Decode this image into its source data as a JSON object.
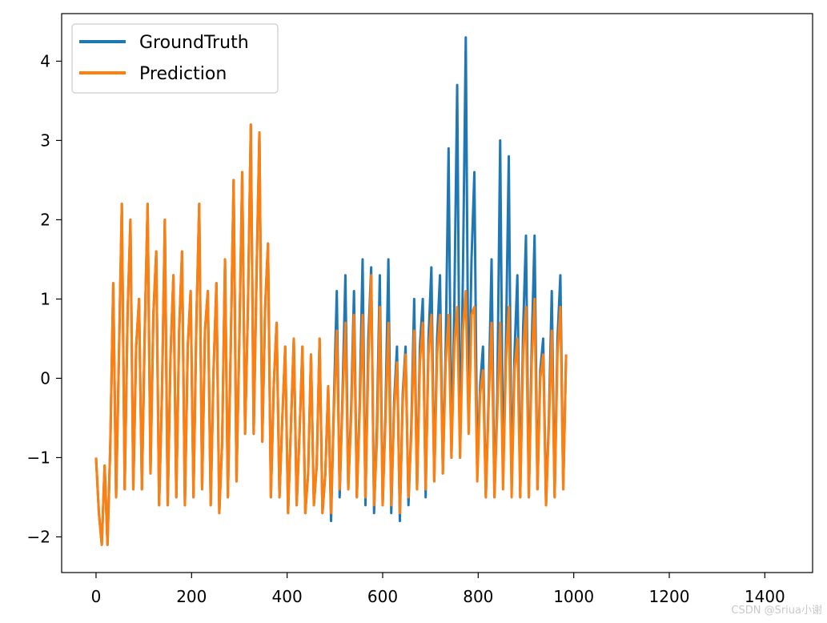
{
  "watermark": "CSDN @Sriua小谢",
  "chart_data": {
    "type": "line",
    "title": "",
    "xlabel": "",
    "ylabel": "",
    "xlim": [
      -72,
      1500
    ],
    "ylim": [
      -2.45,
      4.6
    ],
    "x_ticks": [
      0,
      200,
      400,
      600,
      800,
      1000,
      1200,
      1400
    ],
    "x_tick_labels": [
      "0",
      "200",
      "400",
      "600",
      "800",
      "1000",
      "1200",
      "1400"
    ],
    "y_ticks": [
      -2,
      -1,
      0,
      1,
      2,
      3,
      4
    ],
    "y_tick_labels": [
      "−2",
      "−1",
      "0",
      "1",
      "2",
      "3",
      "4"
    ],
    "grid": false,
    "legend": "top-left",
    "x_start": 0,
    "x_step": 6,
    "series": [
      {
        "name": "GroundTruth",
        "color": "#1f77b4",
        "values": [
          -1.0,
          -1.7,
          -2.1,
          -1.1,
          -2.1,
          -0.8,
          1.2,
          -1.5,
          0.3,
          2.2,
          -1.4,
          0.8,
          2.0,
          -1.4,
          0.4,
          1.0,
          -1.4,
          0.6,
          2.2,
          -1.2,
          0.8,
          1.6,
          -1.6,
          -0.2,
          2.0,
          -1.6,
          0.3,
          1.3,
          -1.5,
          0.6,
          1.6,
          -1.6,
          0.4,
          1.1,
          -1.5,
          0.7,
          2.2,
          -1.4,
          0.6,
          1.1,
          -1.6,
          0.1,
          1.2,
          -1.7,
          -0.8,
          1.5,
          -1.5,
          0.4,
          2.5,
          -1.3,
          0.5,
          2.6,
          -0.7,
          0.9,
          3.2,
          -0.7,
          1.3,
          3.1,
          -0.8,
          0.9,
          1.7,
          -1.5,
          -0.1,
          0.7,
          -1.5,
          -0.5,
          0.4,
          -1.7,
          -0.6,
          0.5,
          -1.6,
          -0.7,
          0.4,
          -1.7,
          -1.2,
          0.3,
          -1.6,
          -1.1,
          0.5,
          -1.7,
          -1.2,
          -0.1,
          -1.8,
          -0.3,
          1.1,
          -1.5,
          -0.2,
          1.3,
          -1.4,
          -0.4,
          1.1,
          -1.5,
          -0.3,
          1.5,
          -1.6,
          0.5,
          1.4,
          -1.7,
          -0.6,
          1.3,
          -1.6,
          -0.4,
          1.5,
          -1.7,
          -0.3,
          0.4,
          -1.8,
          -0.2,
          0.4,
          -1.6,
          -0.6,
          1.0,
          -1.4,
          0.4,
          1.0,
          -1.5,
          0.5,
          1.4,
          -1.3,
          0.5,
          1.3,
          -1.2,
          0.4,
          2.9,
          -1.0,
          0.9,
          3.7,
          -1.0,
          1.3,
          4.3,
          -0.6,
          1.5,
          2.6,
          -1.2,
          -0.1,
          0.4,
          -1.5,
          -0.2,
          1.5,
          -1.5,
          -0.2,
          3.0,
          -1.2,
          0.4,
          2.8,
          -1.4,
          0.3,
          1.3,
          -1.5,
          0.6,
          1.8,
          -1.5,
          0.4,
          1.8,
          -1.4,
          0.1,
          0.5,
          -1.6,
          -0.5,
          1.1,
          -1.5,
          0.5,
          1.3,
          -1.4,
          0.3
        ]
      },
      {
        "name": "Prediction",
        "color": "#ff7f0e",
        "values": [
          -1.0,
          -1.7,
          -2.1,
          -1.1,
          -2.1,
          -0.8,
          1.2,
          -1.5,
          0.3,
          2.2,
          -1.4,
          0.8,
          2.0,
          -1.4,
          0.4,
          1.0,
          -1.4,
          0.6,
          2.2,
          -1.2,
          0.8,
          1.6,
          -1.6,
          -0.2,
          2.0,
          -1.6,
          0.3,
          1.3,
          -1.5,
          0.6,
          1.6,
          -1.6,
          0.4,
          1.1,
          -1.5,
          0.7,
          2.2,
          -1.4,
          0.6,
          1.1,
          -1.6,
          0.1,
          1.2,
          -1.7,
          -0.8,
          1.5,
          -1.5,
          0.4,
          2.5,
          -1.3,
          0.5,
          2.6,
          -0.7,
          0.9,
          3.2,
          -0.7,
          1.3,
          3.1,
          -0.8,
          0.9,
          1.7,
          -1.5,
          -0.1,
          0.7,
          -1.5,
          -0.5,
          0.4,
          -1.7,
          -0.6,
          0.5,
          -1.6,
          -0.7,
          0.4,
          -1.7,
          -1.2,
          0.3,
          -1.6,
          -1.1,
          0.5,
          -1.7,
          -1.2,
          -0.1,
          -1.7,
          -0.4,
          0.6,
          -1.4,
          -0.3,
          0.7,
          -1.4,
          -0.5,
          0.8,
          -1.5,
          -0.4,
          0.8,
          -1.5,
          0.2,
          1.3,
          -1.6,
          -0.8,
          0.9,
          -1.6,
          -0.5,
          0.7,
          -1.6,
          -0.4,
          0.2,
          -1.7,
          -0.3,
          0.3,
          -1.5,
          -0.7,
          0.6,
          -1.4,
          0.2,
          0.7,
          -1.4,
          0.3,
          0.8,
          -1.3,
          0.3,
          0.8,
          -1.2,
          0.2,
          0.8,
          -1.0,
          0.4,
          0.9,
          -1.0,
          0.6,
          1.1,
          -0.7,
          0.8,
          0.9,
          -1.3,
          -0.2,
          0.1,
          -1.5,
          -0.3,
          0.7,
          -1.5,
          -0.4,
          0.7,
          -1.4,
          0.2,
          0.9,
          -1.5,
          0.1,
          0.5,
          -1.5,
          0.3,
          0.9,
          -1.5,
          0.2,
          1.0,
          -1.4,
          0.0,
          0.3,
          -1.6,
          -0.6,
          0.6,
          -1.5,
          0.3,
          0.9,
          -1.4,
          0.3
        ]
      }
    ]
  }
}
